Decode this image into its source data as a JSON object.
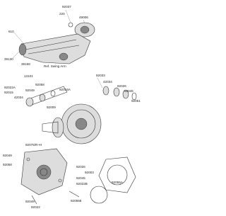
{
  "labels": [
    "92037",
    "220",
    "49006",
    "610",
    "39130",
    "39168",
    "Ref. Swing Arm",
    "13101",
    "92033",
    "92022A",
    "92015",
    "42034",
    "92058",
    "92049",
    "92016A",
    "92009",
    "42034",
    "92026",
    "92045",
    "92051",
    "92075/R~H",
    "92049",
    "92058",
    "92026",
    "92003",
    "92045",
    "92022B",
    "92055A",
    "920558",
    "92049",
    "92022"
  ]
}
